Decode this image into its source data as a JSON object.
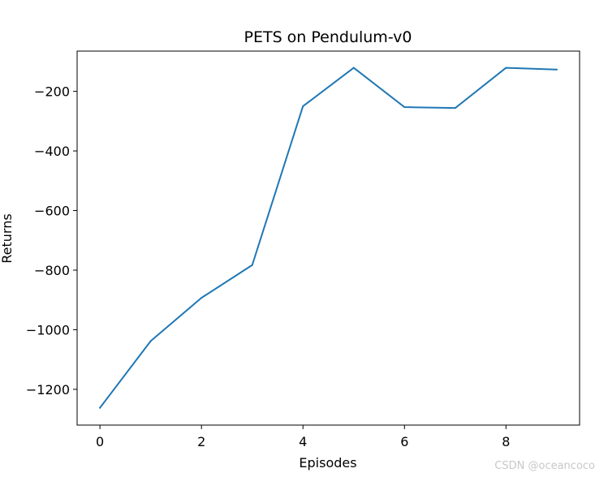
{
  "chart_data": {
    "type": "line",
    "title": "PETS on Pendulum-v0",
    "xlabel": "Episodes",
    "ylabel": "Returns",
    "xlim": [
      -0.45,
      9.45
    ],
    "ylim": [
      -1320,
      -65
    ],
    "xticks": [
      0,
      2,
      4,
      6,
      8
    ],
    "yticks": [
      -1200,
      -1000,
      -800,
      -600,
      -400,
      -200
    ],
    "x_tick_labels": [
      "0",
      "2",
      "4",
      "6",
      "8"
    ],
    "y_tick_labels": [
      "−1200",
      "−1000",
      "−800",
      "−600",
      "−400",
      "−200"
    ],
    "grid": false,
    "series": [
      {
        "color": "#1f77b4",
        "x": [
          0,
          1,
          2,
          3,
          4,
          5,
          6,
          7,
          8,
          9
        ],
        "y": [
          -1262,
          -1038,
          -893,
          -783,
          -250,
          -121,
          -253,
          -256,
          -121,
          -127
        ]
      }
    ]
  },
  "watermark": "CSDN @oceancoco"
}
